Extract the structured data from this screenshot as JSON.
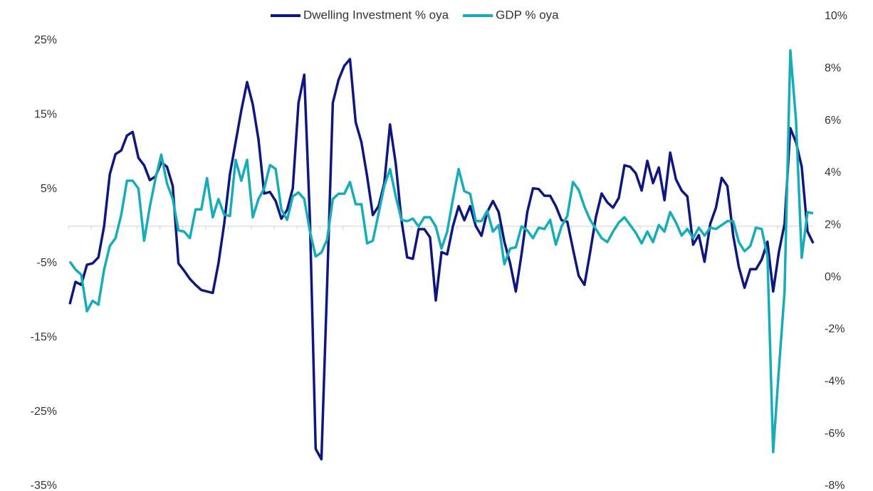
{
  "chart_data": {
    "type": "line",
    "series": [
      {
        "name": "Dwelling Investment % oya",
        "color": "#0f177f",
        "axis": "y",
        "values": [
          -10.5,
          -7.5,
          -7.9,
          -5.2,
          -5,
          -4.2,
          0,
          7,
          9.7,
          10.2,
          12.2,
          12.7,
          9.2,
          8.2,
          6.2,
          6.7,
          8.6,
          8,
          5.4,
          -5,
          -6,
          -7.1,
          -7.9,
          -8.6,
          -8.8,
          -9,
          -5,
          0.3,
          7,
          11.3,
          15.6,
          19.4,
          16.4,
          11.7,
          4.4,
          4.6,
          3.4,
          1,
          2.2,
          5.1,
          16.6,
          20.4,
          0.8,
          -30,
          -31.4,
          -7.9,
          16.6,
          19.7,
          21.6,
          22.5,
          14,
          11.3,
          6.7,
          1.5,
          2.7,
          5.8,
          13.7,
          8.4,
          0.8,
          -4.2,
          -4.4,
          -0.4,
          -0.4,
          -1.5,
          -10,
          -3.5,
          -3.8,
          0,
          2.7,
          0.8,
          2.7,
          0,
          -1.3,
          1.9,
          3.4,
          1.9,
          -2.1,
          -5,
          -8.8,
          -3.8,
          1.9,
          5.1,
          5,
          4.1,
          4.1,
          2.7,
          0.8,
          0.6,
          -3.1,
          -6.7,
          -7.9,
          -3.5,
          1.2,
          4.4,
          3.2,
          2.5,
          3.8,
          8.2,
          8,
          7.1,
          4.8,
          8.8,
          5.8,
          7.9,
          3.5,
          9.9,
          6.3,
          4.8,
          4,
          -2.5,
          -1.2,
          -4.8,
          0.3,
          2.5,
          6.5,
          5.4,
          -1.2,
          -5.5,
          -8.3,
          -5.8,
          -5.8,
          -4.5,
          -2.1,
          -8.8,
          -3.5,
          0.3,
          13.2,
          11.3,
          8,
          -0.7,
          -2.3
        ]
      },
      {
        "name": "GDP % oya",
        "color": "#16adb8",
        "axis": "y2",
        "values": [
          0.6,
          0.3,
          0.1,
          -1.3,
          -0.9,
          -1.05,
          0.3,
          1.2,
          1.5,
          2.4,
          3.7,
          3.7,
          3.4,
          1.4,
          2.7,
          3.8,
          4.7,
          3.6,
          3,
          1.8,
          1.75,
          1.5,
          2.6,
          2.6,
          3.8,
          2.3,
          3,
          2.4,
          2.35,
          4.5,
          3.7,
          4.5,
          2.3,
          3,
          3.4,
          4.3,
          4.15,
          2.6,
          2.2,
          3.1,
          3.25,
          3,
          1.75,
          0.8,
          0.95,
          1.45,
          3,
          3.2,
          3.2,
          3.65,
          2.8,
          2.8,
          1.3,
          1.4,
          2.45,
          3.5,
          4.15,
          3.1,
          2.2,
          2.15,
          2.25,
          1.95,
          2.3,
          2.3,
          1.95,
          1.1,
          1.75,
          3,
          4.15,
          3.3,
          3.2,
          2.15,
          2.15,
          2.55,
          1.75,
          2,
          0.5,
          1.1,
          1.15,
          1.95,
          1.8,
          1.5,
          1.9,
          1.85,
          2.2,
          1.25,
          1.95,
          2.35,
          3.65,
          3.35,
          2.7,
          2.2,
          1.85,
          1.5,
          1.35,
          1.75,
          2.1,
          2.3,
          2,
          1.7,
          1.3,
          1.75,
          1.35,
          2,
          1.75,
          2.5,
          2.1,
          1.6,
          1.85,
          1.5,
          1.9,
          1.6,
          1.9,
          1.85,
          2,
          2.15,
          2.15,
          1.35,
          1,
          1.2,
          1.9,
          1.85,
          0.8,
          -6.7,
          -3.55,
          -0.55,
          8.7,
          6,
          0.75,
          2.5,
          2.45
        ]
      }
    ],
    "ylim": [
      -35,
      25
    ],
    "yticks": [
      {
        "value": 25,
        "label": "25%"
      },
      {
        "value": 15,
        "label": "15%"
      },
      {
        "value": 5,
        "label": "5%"
      },
      {
        "value": -5,
        "label": "-5%"
      },
      {
        "value": -15,
        "label": "-15%"
      },
      {
        "value": -25,
        "label": "-25%"
      },
      {
        "value": -35,
        "label": "-35%"
      }
    ],
    "y2lim": [
      -8,
      10
    ],
    "y2ticks": [
      {
        "value": 10,
        "label": "10%"
      },
      {
        "value": 8,
        "label": "8%"
      },
      {
        "value": 6,
        "label": "6%"
      },
      {
        "value": 4,
        "label": "4%"
      },
      {
        "value": 2,
        "label": "2%"
      },
      {
        "value": 0,
        "label": "0%"
      },
      {
        "value": -2,
        "label": "-2%"
      },
      {
        "value": -4,
        "label": "-4%"
      },
      {
        "value": -6,
        "label": "-6%"
      },
      {
        "value": -8,
        "label": "-8%"
      }
    ],
    "legend": "top"
  }
}
